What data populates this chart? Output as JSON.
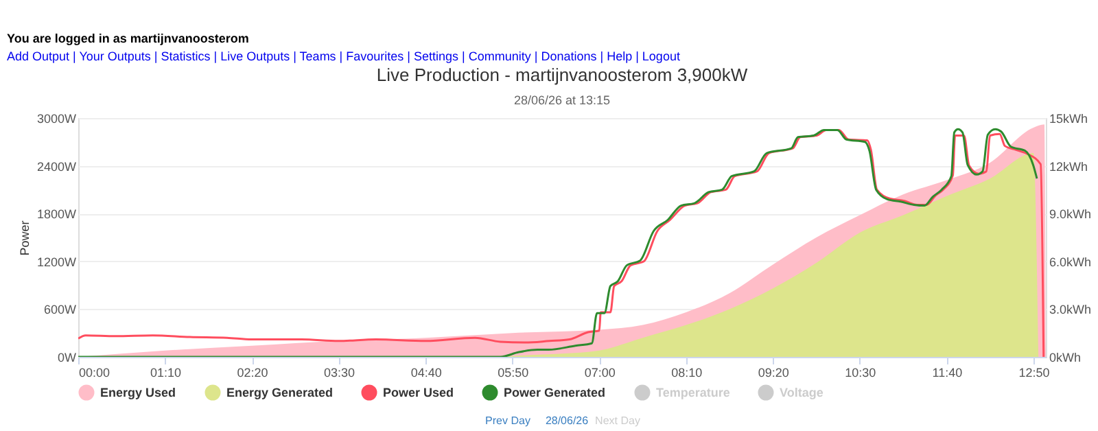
{
  "chart_data": {
    "type": "line",
    "title": "Live Production - martijnvanoosterom 3,900kW",
    "subtitle": "28/06/26 at 13:15",
    "ylabel": "Power",
    "annotations": [
      "You are logged in as martijnvanoosterom",
      "Add Output | Your Outputs | Statistics | Live Outputs | Teams | Favourites | Settings | Community | Donations | Help | Logout",
      "Prev Day",
      "28/06/26",
      "Next Day"
    ],
    "xlim": [
      0,
      13
    ],
    "xticks": [
      {
        "value": 0,
        "label": "00:00"
      },
      {
        "value": 1.1667,
        "label": "01:10"
      },
      {
        "value": 2.3333,
        "label": "02:20"
      },
      {
        "value": 3.5,
        "label": "03:30"
      },
      {
        "value": 4.6667,
        "label": "04:40"
      },
      {
        "value": 5.8333,
        "label": "05:50"
      },
      {
        "value": 7,
        "label": "07:00"
      },
      {
        "value": 8.1667,
        "label": "08:10"
      },
      {
        "value": 9.3333,
        "label": "09:20"
      },
      {
        "value": 10.5,
        "label": "10:30"
      },
      {
        "value": 11.6667,
        "label": "11:40"
      },
      {
        "value": 12.8333,
        "label": "12:50"
      }
    ],
    "ylim": [
      0,
      3000
    ],
    "yticks": [
      {
        "value": 0,
        "label": "0W"
      },
      {
        "value": 600,
        "label": "600W"
      },
      {
        "value": 1200,
        "label": "1200W"
      },
      {
        "value": 1800,
        "label": "1800W"
      },
      {
        "value": 2400,
        "label": "2400W"
      },
      {
        "value": 3000,
        "label": "3000W"
      }
    ],
    "y2lim": [
      0,
      15
    ],
    "y2ticks": [
      {
        "value": 0,
        "label": "0kWh"
      },
      {
        "value": 3,
        "label": "3.0kWh"
      },
      {
        "value": 6,
        "label": "6.0kWh"
      },
      {
        "value": 9,
        "label": "9.0kWh"
      },
      {
        "value": 12,
        "label": "12kWh"
      },
      {
        "value": 15,
        "label": "15kWh"
      }
    ],
    "grid": "y",
    "legend": "bottom",
    "series": [
      {
        "name": "Energy Used",
        "type": "area",
        "axis": "y2",
        "color": "#ffbdc8",
        "x": [
          0,
          1.1667,
          2.3333,
          3.5,
          4.6667,
          5.8333,
          7,
          7.5833,
          8.1667,
          8.75,
          9.3333,
          9.9167,
          10.5,
          11.0833,
          11.6667,
          12.25,
          12.8333,
          12.98,
          13
        ],
        "values": [
          0,
          0.4,
          0.7,
          1.0,
          1.2,
          1.5,
          1.7,
          2.0,
          2.8,
          4.0,
          5.8,
          7.5,
          8.9,
          10.2,
          11.1,
          12.2,
          14.4,
          14.6,
          0
        ]
      },
      {
        "name": "Energy Generated",
        "type": "area",
        "axis": "y2",
        "color": "#dde58c",
        "x": [
          0,
          5.5,
          6,
          6.5,
          7,
          7.5833,
          8.1667,
          8.75,
          9.3333,
          9.9167,
          10.5,
          11.0833,
          11.6667,
          12.25,
          12.8333,
          12.9
        ],
        "values": [
          0,
          0,
          0.1,
          0.2,
          0.4,
          1.2,
          2.0,
          3.0,
          4.3,
          5.9,
          7.8,
          8.9,
          10.1,
          11.2,
          12.8,
          0
        ]
      },
      {
        "name": "Power Used",
        "color": "#ff4d5e",
        "x": [
          0,
          0.1,
          0.5,
          1,
          1.5,
          2,
          2.33,
          3,
          3.5,
          4,
          4.67,
          5.33,
          5.67,
          6,
          6.33,
          6.6,
          6.85,
          7,
          7.02,
          7.15,
          7.2,
          7.3,
          7.42,
          7.6,
          7.78,
          7.95,
          8.15,
          8.32,
          8.5,
          8.7,
          8.82,
          9.12,
          9.28,
          9.6,
          9.7,
          9.92,
          10.05,
          10.22,
          10.35,
          10.6,
          10.65,
          10.73,
          10.9,
          11.1,
          11.27,
          11.4,
          11.52,
          11.62,
          11.75,
          11.78,
          11.9,
          11.97,
          12.1,
          12.2,
          12.25,
          12.38,
          12.45,
          12.6,
          12.75,
          12.93,
          12.97
        ],
        "values": [
          230,
          270,
          260,
          270,
          250,
          240,
          220,
          220,
          200,
          220,
          200,
          240,
          190,
          180,
          200,
          220,
          310,
          330,
          560,
          560,
          890,
          950,
          1150,
          1200,
          1580,
          1720,
          1900,
          1930,
          2070,
          2100,
          2270,
          2330,
          2560,
          2620,
          2760,
          2780,
          2850,
          2850,
          2730,
          2720,
          2600,
          2100,
          1990,
          1960,
          1910,
          1910,
          2030,
          2100,
          2280,
          2780,
          2780,
          2400,
          2300,
          2330,
          2780,
          2800,
          2650,
          2600,
          2550,
          2420,
          0
        ]
      },
      {
        "name": "Power Generated",
        "color": "#2e8b2e",
        "x": [
          0,
          5.67,
          5.92,
          6.17,
          6.32,
          6.68,
          6.9,
          6.97,
          7.07,
          7.15,
          7.25,
          7.37,
          7.55,
          7.73,
          7.92,
          8.1,
          8.28,
          8.47,
          8.65,
          8.78,
          9.08,
          9.25,
          9.58,
          9.67,
          9.88,
          10.02,
          10.2,
          10.32,
          10.57,
          10.63,
          10.72,
          10.87,
          11.05,
          11.23,
          11.37,
          11.48,
          11.6,
          11.73,
          11.77,
          11.82,
          11.88,
          11.95,
          12.07,
          12.15,
          12.22,
          12.32,
          12.4,
          12.53,
          12.72,
          12.83,
          12.88
        ],
        "values": [
          0,
          0,
          60,
          90,
          90,
          140,
          170,
          550,
          550,
          890,
          950,
          1150,
          1210,
          1580,
          1720,
          1900,
          1930,
          2070,
          2100,
          2270,
          2330,
          2560,
          2620,
          2760,
          2780,
          2850,
          2850,
          2730,
          2700,
          2590,
          2100,
          1980,
          1950,
          1910,
          1900,
          2010,
          2100,
          2270,
          2820,
          2860,
          2820,
          2410,
          2290,
          2330,
          2790,
          2860,
          2830,
          2640,
          2590,
          2410,
          2240
        ]
      },
      {
        "name": "Temperature",
        "color": "#cccccc"
      },
      {
        "name": "Voltage",
        "color": "#cccccc"
      }
    ]
  }
}
